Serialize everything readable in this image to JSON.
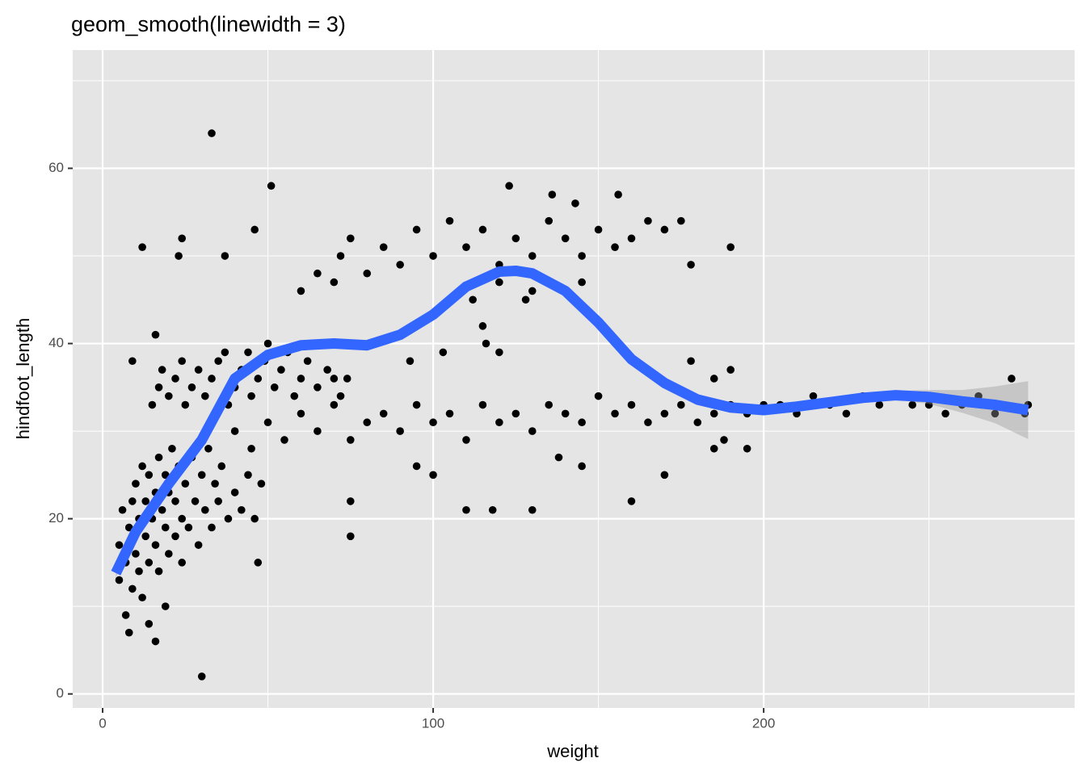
{
  "chart_data": {
    "type": "scatter",
    "title": "geom_smooth(linewidth = 3)",
    "x_label": "weight",
    "y_label": "hindfoot_length",
    "xlim": [
      -9.05,
      294.1
    ],
    "ylim": [
      -1.6,
      73.5
    ],
    "xticks": [
      0,
      100,
      200
    ],
    "yticks": [
      0,
      20,
      40,
      60
    ],
    "x_minor_grid": [
      50,
      150,
      250
    ],
    "y_minor_grid": [
      10,
      30,
      50,
      70
    ],
    "grid": true,
    "panel_color": "#e5e5e5",
    "point_color": "#000000",
    "x": [
      5,
      5,
      6,
      7,
      7,
      8,
      8,
      9,
      9,
      10,
      10,
      11,
      11,
      12,
      12,
      13,
      13,
      14,
      14,
      15,
      16,
      16,
      17,
      17,
      18,
      19,
      19,
      20,
      20,
      21,
      22,
      22,
      23,
      24,
      24,
      25,
      26,
      27,
      28,
      29,
      30,
      31,
      32,
      33,
      34,
      35,
      36,
      38,
      40,
      42,
      44,
      46,
      48,
      33,
      30,
      51,
      12,
      24,
      23,
      9,
      16,
      16,
      14,
      19,
      47,
      75,
      75,
      37,
      46,
      15,
      17,
      18,
      20,
      22,
      24,
      25,
      27,
      29,
      31,
      33,
      35,
      37,
      38,
      40,
      42,
      44,
      45,
      47,
      49,
      50,
      52,
      54,
      56,
      58,
      60,
      62,
      65,
      68,
      70,
      72,
      74,
      40,
      45,
      50,
      55,
      60,
      65,
      70,
      75,
      80,
      85,
      90,
      95,
      100,
      105,
      110,
      115,
      120,
      125,
      130,
      135,
      140,
      145,
      150,
      155,
      160,
      165,
      170,
      175,
      180,
      185,
      190,
      195,
      200,
      205,
      210,
      215,
      220,
      225,
      230,
      235,
      240,
      245,
      250,
      255,
      260,
      265,
      270,
      275,
      280,
      279,
      95,
      100,
      110,
      118,
      130,
      160,
      170,
      145,
      185,
      195,
      188,
      138,
      60,
      65,
      70,
      72,
      75,
      80,
      85,
      90,
      95,
      100,
      105,
      110,
      115,
      120,
      123,
      125,
      130,
      135,
      136,
      140,
      143,
      145,
      150,
      155,
      156,
      160,
      165,
      170,
      175,
      178,
      190,
      120,
      130,
      145,
      115,
      116,
      120,
      103,
      93,
      178,
      185,
      190,
      112,
      128
    ],
    "y": [
      13,
      17,
      21,
      9,
      15,
      19,
      7,
      12,
      22,
      16,
      24,
      14,
      20,
      26,
      11,
      18,
      22,
      15,
      25,
      20,
      17,
      23,
      27,
      14,
      21,
      19,
      25,
      16,
      23,
      28,
      18,
      22,
      26,
      20,
      15,
      24,
      19,
      27,
      22,
      17,
      25,
      21,
      28,
      19,
      24,
      22,
      26,
      20,
      23,
      21,
      25,
      20,
      24,
      64,
      2,
      58,
      51,
      52,
      50,
      38,
      41,
      6,
      8,
      10,
      15,
      18,
      22,
      50,
      53,
      33,
      35,
      37,
      34,
      36,
      38,
      33,
      35,
      37,
      34,
      36,
      38,
      39,
      33,
      35,
      37,
      39,
      34,
      36,
      38,
      40,
      35,
      37,
      39,
      34,
      36,
      38,
      35,
      37,
      36,
      34,
      36,
      30,
      28,
      31,
      29,
      32,
      30,
      33,
      29,
      31,
      32,
      30,
      33,
      31,
      32,
      29,
      33,
      31,
      32,
      30,
      33,
      32,
      31,
      34,
      32,
      33,
      31,
      32,
      33,
      31,
      32,
      33,
      32,
      33,
      33,
      32,
      34,
      33,
      32,
      34,
      33,
      34,
      33,
      33,
      32,
      33,
      34,
      32,
      36,
      33,
      32,
      26,
      25,
      21,
      21,
      21,
      22,
      25,
      26,
      28,
      28,
      29,
      27,
      46,
      48,
      47,
      50,
      52,
      48,
      51,
      49,
      53,
      50,
      54,
      51,
      53,
      49,
      58,
      52,
      50,
      54,
      57,
      52,
      56,
      50,
      53,
      51,
      57,
      52,
      54,
      53,
      54,
      49,
      51,
      47,
      46,
      47,
      42,
      40,
      39,
      39,
      38,
      38,
      36,
      37,
      45,
      45
    ],
    "smooth_color": "#3366ff",
    "ribbon_color": "#999999",
    "smooth_x": [
      4,
      10,
      20,
      30,
      40,
      50,
      60,
      70,
      80,
      90,
      100,
      110,
      120,
      125,
      130,
      140,
      150,
      160,
      170,
      180,
      190,
      200,
      210,
      220,
      230,
      240,
      250,
      260,
      270,
      280
    ],
    "smooth_y": [
      13.8,
      18.5,
      24,
      29,
      36,
      38.7,
      39.8,
      40,
      39.8,
      41,
      43.3,
      46.5,
      48.2,
      48.3,
      48,
      46,
      42.4,
      38.2,
      35.5,
      33.6,
      32.7,
      32.4,
      32.8,
      33.3,
      33.8,
      34.1,
      33.9,
      33.4,
      33,
      32.4
    ],
    "smooth_lower": [
      13.3,
      18.2,
      23.7,
      28.7,
      35.7,
      38.4,
      39.5,
      39.7,
      39.5,
      40.7,
      43,
      46.2,
      47.9,
      48,
      47.7,
      45.7,
      42.1,
      37.9,
      35.2,
      33.3,
      32.4,
      32.1,
      32.5,
      33,
      33.4,
      33.6,
      33.1,
      32.1,
      30.9,
      29.1
    ],
    "smooth_upper": [
      14.3,
      18.8,
      24.3,
      29.3,
      36.3,
      39,
      40.1,
      40.3,
      40.1,
      41.3,
      43.6,
      46.8,
      48.5,
      48.6,
      48.3,
      46.3,
      42.7,
      38.5,
      35.8,
      33.9,
      33,
      32.7,
      33.1,
      33.6,
      34.2,
      34.6,
      34.7,
      34.7,
      35.1,
      35.7
    ]
  }
}
